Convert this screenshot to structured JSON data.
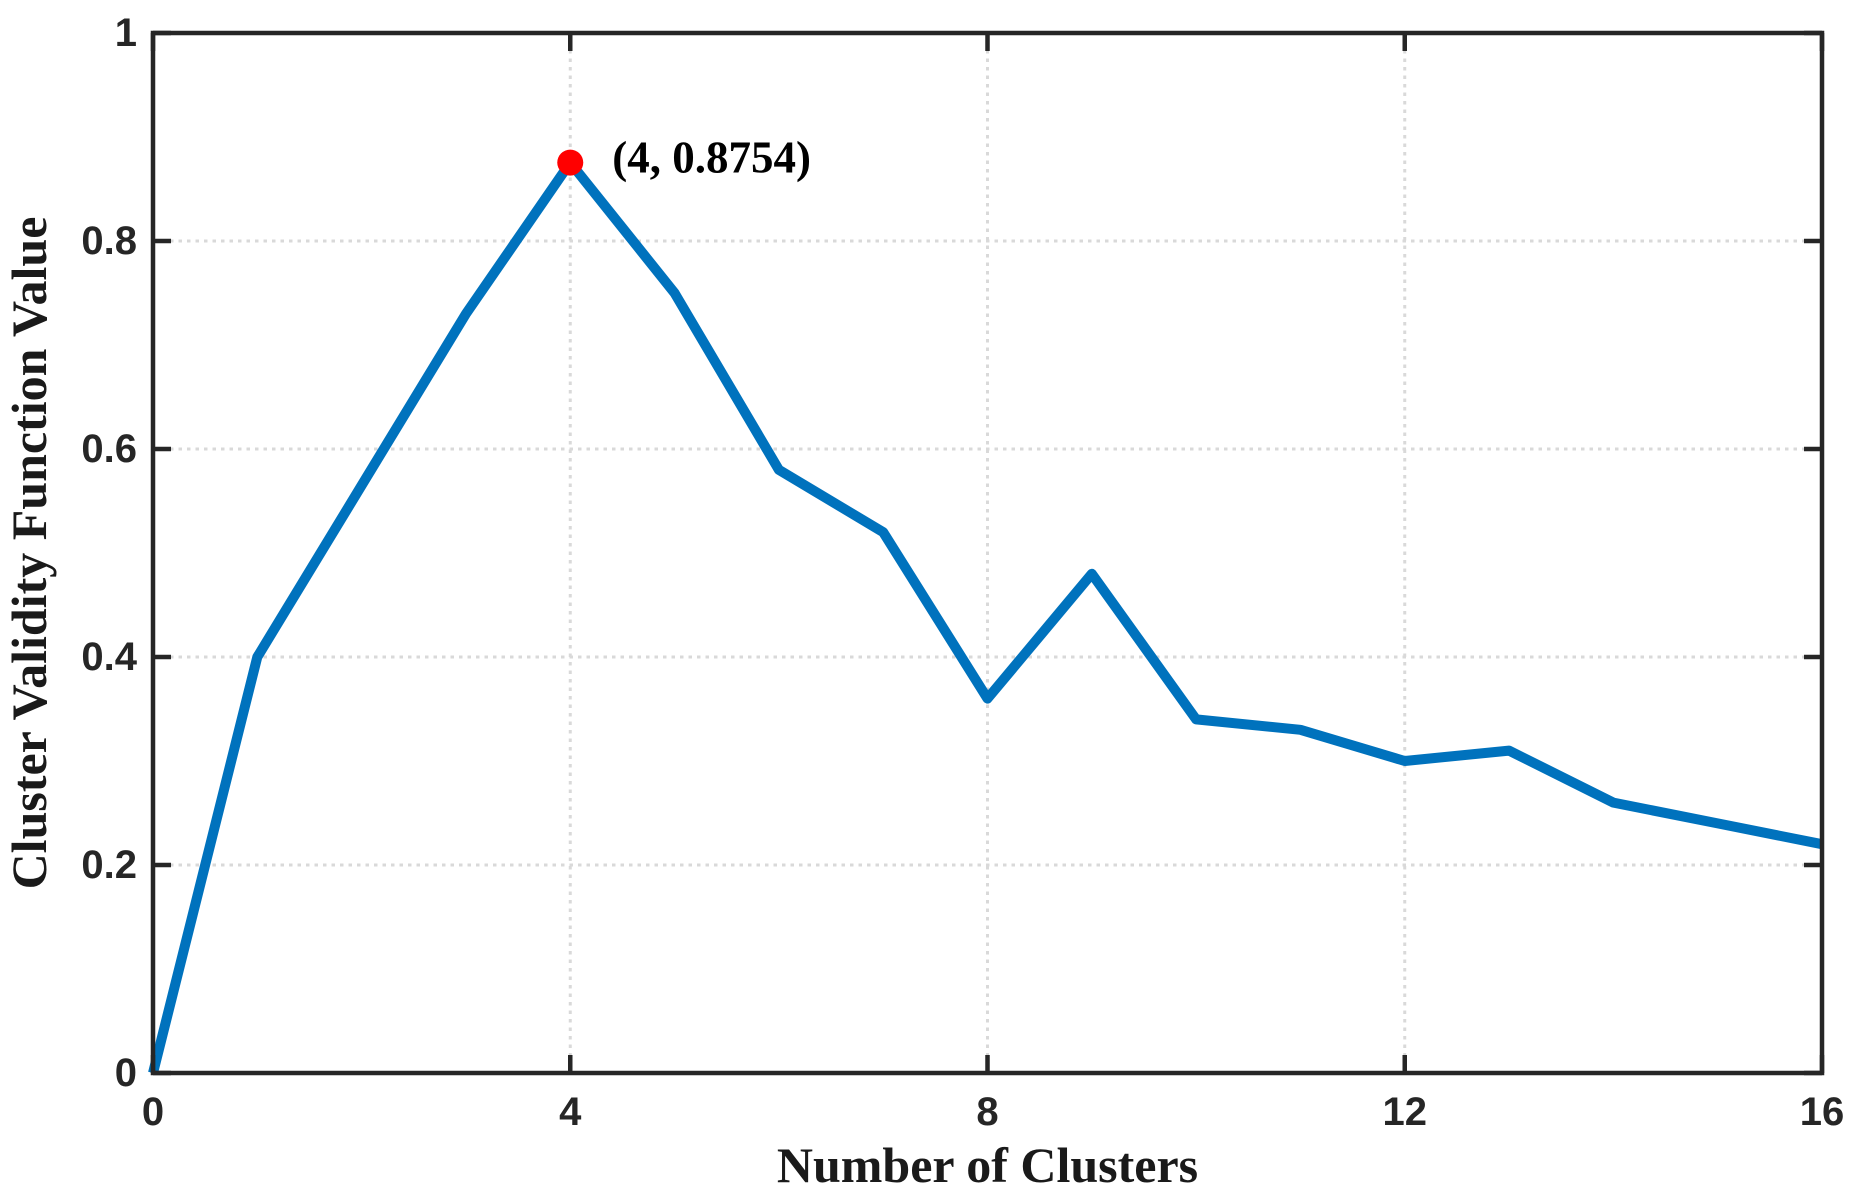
{
  "chart_data": {
    "type": "line",
    "title": "",
    "xlabel": "Number of Clusters",
    "ylabel": "Cluster Validity Function Value",
    "x": [
      0,
      1,
      2,
      3,
      4,
      5,
      6,
      7,
      8,
      9,
      10,
      11,
      12,
      13,
      14,
      15,
      16
    ],
    "values": [
      0,
      0.4,
      0.565,
      0.73,
      0.8754,
      0.75,
      0.58,
      0.52,
      0.36,
      0.48,
      0.34,
      0.33,
      0.3,
      0.31,
      0.26,
      0.24,
      0.22
    ],
    "xlim": [
      0,
      16
    ],
    "ylim": [
      0,
      1
    ],
    "xticks": [
      0,
      4,
      8,
      12,
      16
    ],
    "yticks": [
      0,
      0.2,
      0.4,
      0.6,
      0.8,
      1
    ],
    "xtick_labels": [
      "0",
      "4",
      "8",
      "12",
      "16"
    ],
    "ytick_labels": [
      "0",
      "0.2",
      "0.4",
      "0.6",
      "0.8",
      "1"
    ],
    "grid": {
      "style": "dotted",
      "x_gridlines": [
        4,
        8,
        12
      ],
      "y_gridlines": [
        0.2,
        0.4,
        0.6,
        0.8
      ]
    },
    "legend": null,
    "annotation": {
      "text": "(4, 0.8754)",
      "x": 4,
      "y": 0.8754
    },
    "colors": {
      "line": "#0072bd",
      "marker": "#ff0000",
      "grid": "#d9d9d9",
      "axis": "#262626"
    }
  }
}
